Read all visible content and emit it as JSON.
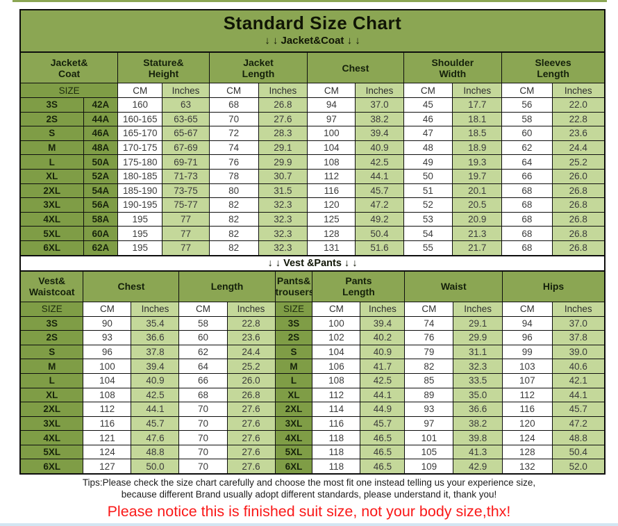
{
  "title": "Standard Size Chart",
  "jacket_banner": "↓ ↓  Jacket&Coat ↓ ↓",
  "vest_banner": "↓ ↓  Vest &Pants ↓ ↓",
  "size_label": "SIZE",
  "unit_cm": "CM",
  "unit_inches": "Inches",
  "colors": {
    "header_olive": "#8ba653",
    "size_cell_olive": "#7f9d46",
    "inches_cell_green": "#c4d89a",
    "cm_cell_white": "#ffffff",
    "border_black": "#0d0d0d",
    "notice_red": "#fa1818"
  },
  "jacket_table": {
    "group_headers": [
      {
        "l1": "Jacket&",
        "l2": "Coat"
      },
      {
        "l1": "Stature&",
        "l2": "Height"
      },
      {
        "l1": "Jacket",
        "l2": "Length"
      },
      {
        "l1": "Chest",
        "l2": ""
      },
      {
        "l1": "Shoulder",
        "l2": "Width"
      },
      {
        "l1": "Sleeves",
        "l2": "Length"
      }
    ],
    "rows": [
      [
        "3S",
        "42A",
        "160",
        "63",
        "68",
        "26.8",
        "94",
        "37.0",
        "45",
        "17.7",
        "56",
        "22.0"
      ],
      [
        "2S",
        "44A",
        "160-165",
        "63-65",
        "70",
        "27.6",
        "97",
        "38.2",
        "46",
        "18.1",
        "58",
        "22.8"
      ],
      [
        "S",
        "46A",
        "165-170",
        "65-67",
        "72",
        "28.3",
        "100",
        "39.4",
        "47",
        "18.5",
        "60",
        "23.6"
      ],
      [
        "M",
        "48A",
        "170-175",
        "67-69",
        "74",
        "29.1",
        "104",
        "40.9",
        "48",
        "18.9",
        "62",
        "24.4"
      ],
      [
        "L",
        "50A",
        "175-180",
        "69-71",
        "76",
        "29.9",
        "108",
        "42.5",
        "49",
        "19.3",
        "64",
        "25.2"
      ],
      [
        "XL",
        "52A",
        "180-185",
        "71-73",
        "78",
        "30.7",
        "112",
        "44.1",
        "50",
        "19.7",
        "66",
        "26.0"
      ],
      [
        "2XL",
        "54A",
        "185-190",
        "73-75",
        "80",
        "31.5",
        "116",
        "45.7",
        "51",
        "20.1",
        "68",
        "26.8"
      ],
      [
        "3XL",
        "56A",
        "190-195",
        "75-77",
        "82",
        "32.3",
        "120",
        "47.2",
        "52",
        "20.5",
        "68",
        "26.8"
      ],
      [
        "4XL",
        "58A",
        "195",
        "77",
        "82",
        "32.3",
        "125",
        "49.2",
        "53",
        "20.9",
        "68",
        "26.8"
      ],
      [
        "5XL",
        "60A",
        "195",
        "77",
        "82",
        "32.3",
        "128",
        "50.4",
        "54",
        "21.3",
        "68",
        "26.8"
      ],
      [
        "6XL",
        "62A",
        "195",
        "77",
        "82",
        "32.3",
        "131",
        "51.6",
        "55",
        "21.7",
        "68",
        "26.8"
      ]
    ]
  },
  "vest_table": {
    "group_headers": [
      {
        "l1": "Vest&",
        "l2": "Waistcoat"
      },
      {
        "l1": "Chest",
        "l2": ""
      },
      {
        "l1": "Length",
        "l2": ""
      },
      {
        "l1": "Pants&",
        "l2": "trousers"
      },
      {
        "l1": "Pants",
        "l2": "Length"
      },
      {
        "l1": "Waist",
        "l2": ""
      },
      {
        "l1": "Hips",
        "l2": ""
      }
    ],
    "rows": [
      [
        "3S",
        "90",
        "35.4",
        "58",
        "22.8",
        "3S",
        "100",
        "39.4",
        "74",
        "29.1",
        "94",
        "37.0"
      ],
      [
        "2S",
        "93",
        "36.6",
        "60",
        "23.6",
        "2S",
        "102",
        "40.2",
        "76",
        "29.9",
        "96",
        "37.8"
      ],
      [
        "S",
        "96",
        "37.8",
        "62",
        "24.4",
        "S",
        "104",
        "40.9",
        "79",
        "31.1",
        "99",
        "39.0"
      ],
      [
        "M",
        "100",
        "39.4",
        "64",
        "25.2",
        "M",
        "106",
        "41.7",
        "82",
        "32.3",
        "103",
        "40.6"
      ],
      [
        "L",
        "104",
        "40.9",
        "66",
        "26.0",
        "L",
        "108",
        "42.5",
        "85",
        "33.5",
        "107",
        "42.1"
      ],
      [
        "XL",
        "108",
        "42.5",
        "68",
        "26.8",
        "XL",
        "112",
        "44.1",
        "89",
        "35.0",
        "112",
        "44.1"
      ],
      [
        "2XL",
        "112",
        "44.1",
        "70",
        "27.6",
        "2XL",
        "114",
        "44.9",
        "93",
        "36.6",
        "116",
        "45.7"
      ],
      [
        "3XL",
        "116",
        "45.7",
        "70",
        "27.6",
        "3XL",
        "116",
        "45.7",
        "97",
        "38.2",
        "120",
        "47.2"
      ],
      [
        "4XL",
        "121",
        "47.6",
        "70",
        "27.6",
        "4XL",
        "118",
        "46.5",
        "101",
        "39.8",
        "124",
        "48.8"
      ],
      [
        "5XL",
        "124",
        "48.8",
        "70",
        "27.6",
        "5XL",
        "118",
        "46.5",
        "105",
        "41.3",
        "128",
        "50.4"
      ],
      [
        "6XL",
        "127",
        "50.0",
        "70",
        "27.6",
        "6XL",
        "118",
        "46.5",
        "109",
        "42.9",
        "132",
        "52.0"
      ]
    ]
  },
  "tips": {
    "line1": "Tips:Please check the size chart carefully and choose the most fit one instead telling us your experience size,",
    "line2": "because different Brand usually adopt different standards, please understand it, thank you!",
    "notice": "Please notice this is finished suit size, not your body size,thx!"
  }
}
